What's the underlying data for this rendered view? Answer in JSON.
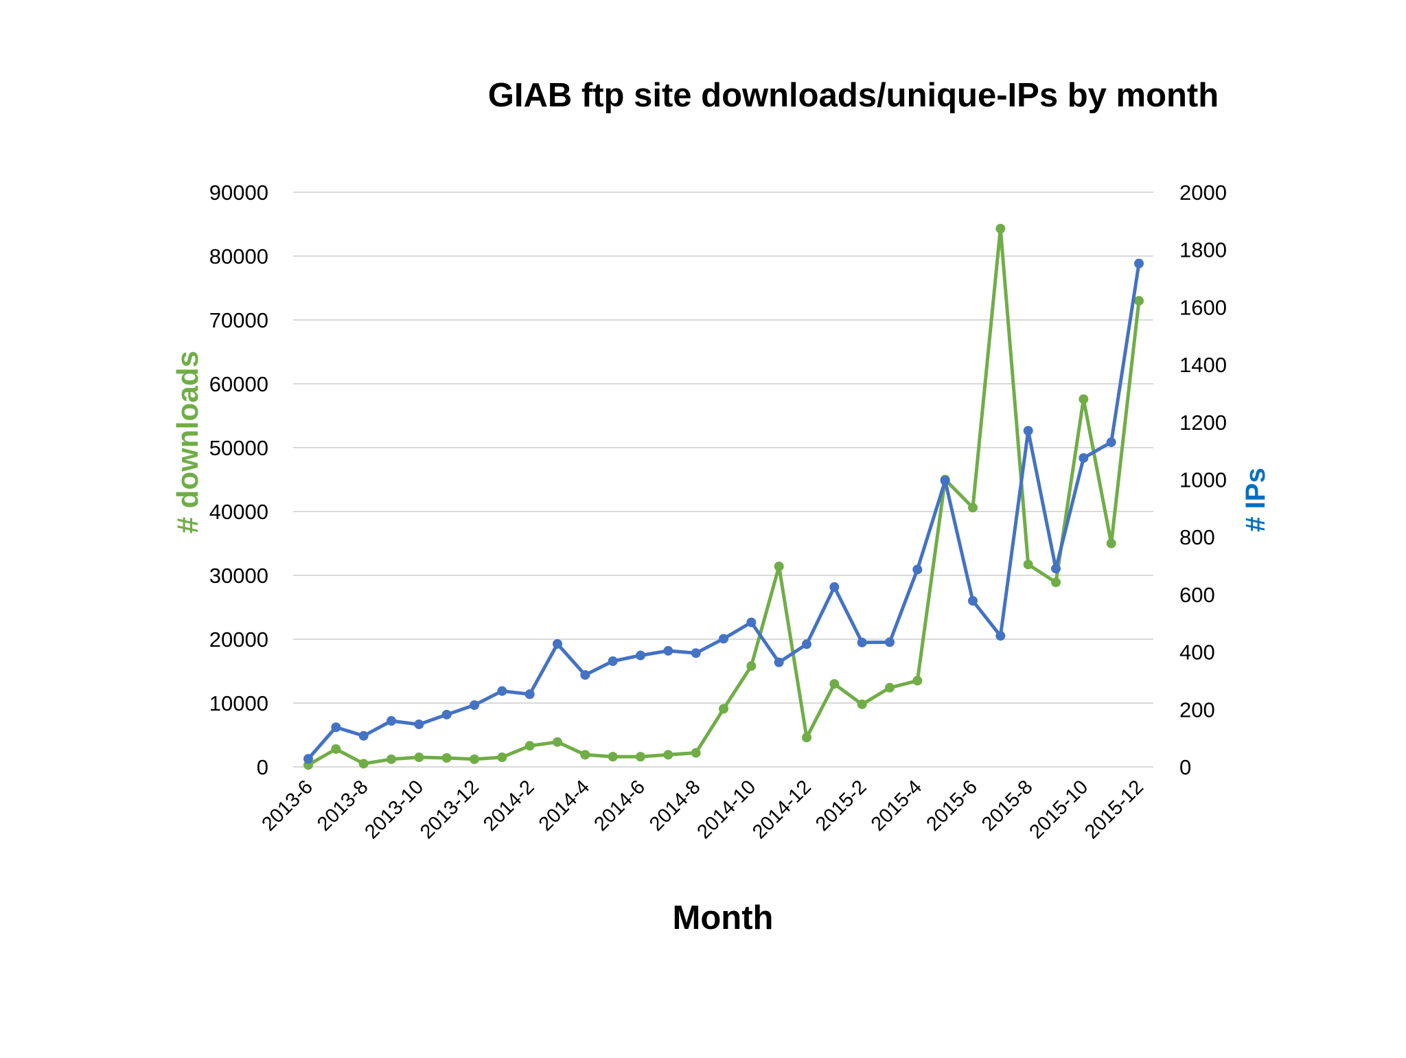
{
  "chart_data": {
    "type": "line",
    "title": "GIAB ftp site downloads/unique-IPs by month",
    "xlabel": "Month",
    "ylabel": "# downloads",
    "ylabel_right": "# IPs",
    "ylim": [
      0,
      90000
    ],
    "ylim_right": [
      0,
      2000
    ],
    "yticks": [
      "0",
      "10000",
      "20000",
      "30000",
      "40000",
      "50000",
      "60000",
      "70000",
      "80000",
      "90000"
    ],
    "yticks_right": [
      "0",
      "200",
      "400",
      "600",
      "800",
      "1000",
      "1200",
      "1400",
      "1600",
      "1800",
      "2000"
    ],
    "grid": true,
    "x": [
      "2013-6",
      "2013-7",
      "2013-8",
      "2013-9",
      "2013-10",
      "2013-11",
      "2013-12",
      "2014-1",
      "2014-2",
      "2014-3",
      "2014-4",
      "2014-5",
      "2014-6",
      "2014-7",
      "2014-8",
      "2014-9",
      "2014-10",
      "2014-11",
      "2014-12",
      "2015-1",
      "2015-2",
      "2015-3",
      "2015-4",
      "2015-5",
      "2015-6",
      "2015-7",
      "2015-8",
      "2015-9",
      "2015-10",
      "2015-11",
      "2015-12"
    ],
    "x_tick_labels": [
      "2013-6",
      "2013-8",
      "2013-10",
      "2013-12",
      "2014-2",
      "2014-4",
      "2014-6",
      "2014-8",
      "2014-10",
      "2014-12",
      "2015-2",
      "2015-4",
      "2015-6",
      "2015-8",
      "2015-10",
      "2015-12"
    ],
    "series": [
      {
        "name": "# downloads",
        "axis": "left",
        "color": "#70ad47",
        "values": [
          300,
          2800,
          500,
          1200,
          1500,
          1400,
          1200,
          1500,
          3300,
          3900,
          1900,
          1600,
          1600,
          1900,
          2200,
          9100,
          15800,
          31400,
          4600,
          13000,
          9800,
          12400,
          13500,
          45000,
          40600,
          84300,
          31700,
          28900,
          57600,
          35000,
          73000
        ]
      },
      {
        "name": "# IPs",
        "axis": "right",
        "color": "#4472c4",
        "values": [
          28,
          138,
          108,
          160,
          148,
          182,
          215,
          264,
          253,
          428,
          320,
          368,
          388,
          404,
          396,
          446,
          503,
          364,
          427,
          626,
          433,
          434,
          687,
          996,
          578,
          456,
          1170,
          690,
          1075,
          1130,
          1752
        ]
      }
    ]
  }
}
